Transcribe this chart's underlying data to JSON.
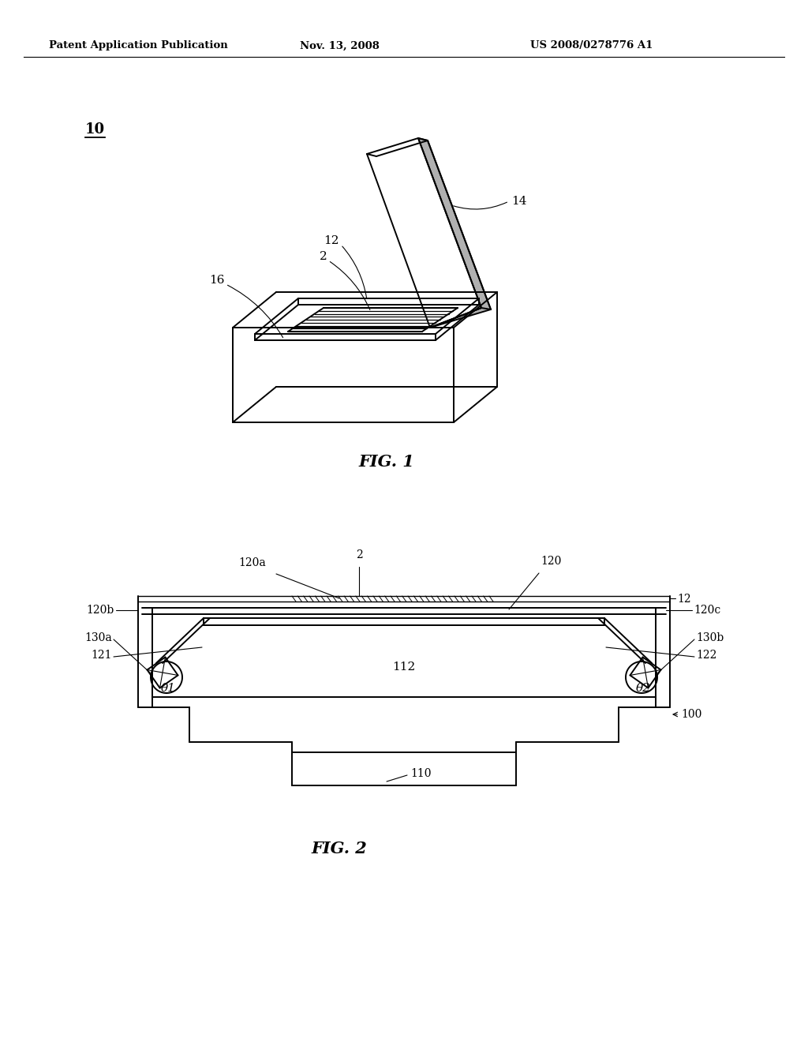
{
  "bg_color": "#ffffff",
  "header_left": "Patent Application Publication",
  "header_center": "Nov. 13, 2008",
  "header_right": "US 2008/0278776 A1",
  "fig1_label": "FIG. 1",
  "fig2_label": "FIG. 2",
  "label_10": "10",
  "label_14": "14",
  "label_12": "12",
  "label_2": "2",
  "label_16": "16",
  "label_2b": "2",
  "label_120a": "120a",
  "label_120": "120",
  "label_12b": "12",
  "label_120b": "120b",
  "label_120c": "120c",
  "label_130a": "130a",
  "label_130b": "130b",
  "label_121": "121",
  "label_122": "122",
  "label_theta1": "θ1",
  "label_theta2": "θ2",
  "label_112": "112",
  "label_100": "100",
  "label_110": "110"
}
